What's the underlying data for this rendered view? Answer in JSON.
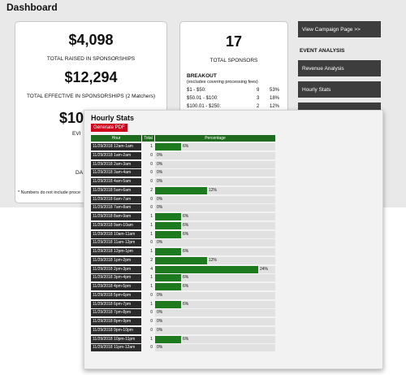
{
  "dashboard": {
    "title": "Dashboard",
    "raised": {
      "value": "$4,098",
      "label": "TOTAL RAISED IN SPONSORSHIPS"
    },
    "effective": {
      "value": "$12,294",
      "label": "TOTAL EFFECTIVE IN SPONSORSHIPS (2 Matchers)"
    },
    "partial_value": "$10",
    "partial_label_1": "EVI",
    "partial_label_2": "DA",
    "note": "* Numbers do not include proce",
    "sponsors": {
      "value": "17",
      "label": "TOTAL SPONSORS"
    },
    "breakout": {
      "title": "BREAKOUT",
      "subtitle": "(excludes covering processing fees)",
      "rows": [
        {
          "range": "$1 - $50:",
          "count": "9",
          "pct": "53%"
        },
        {
          "range": "$50.01 - $100:",
          "count": "3",
          "pct": "18%"
        },
        {
          "range": "$100.01 - $250:",
          "count": "2",
          "pct": "12%"
        }
      ]
    },
    "sidebar": {
      "campaign_button": "View Campaign Page >>",
      "analysis_heading": "EVENT ANALYSIS",
      "revenue_button": "Revenue Analysis",
      "hourly_button": "Hourly Stats"
    }
  },
  "modal": {
    "title": "Hourly Stats",
    "pdf_button": "Generate PDF",
    "headers": {
      "hour": "Hour",
      "total": "Total",
      "percentage": "Percentage"
    },
    "rows": [
      {
        "hour": "11/29/2018 12am-1am",
        "total": "1",
        "pct": 6,
        "pct_label": "6%"
      },
      {
        "hour": "11/29/2018 1am-2am",
        "total": "0",
        "pct": 0,
        "pct_label": "0%"
      },
      {
        "hour": "11/29/2018 2am-3am",
        "total": "0",
        "pct": 0,
        "pct_label": "0%"
      },
      {
        "hour": "11/29/2018 3am-4am",
        "total": "0",
        "pct": 0,
        "pct_label": "0%"
      },
      {
        "hour": "11/29/2018 4am-5am",
        "total": "0",
        "pct": 0,
        "pct_label": "0%"
      },
      {
        "hour": "11/29/2018 5am-6am",
        "total": "2",
        "pct": 12,
        "pct_label": "12%"
      },
      {
        "hour": "11/29/2018 6am-7am",
        "total": "0",
        "pct": 0,
        "pct_label": "0%"
      },
      {
        "hour": "11/29/2018 7am-8am",
        "total": "0",
        "pct": 0,
        "pct_label": "0%"
      },
      {
        "hour": "11/29/2018 8am-9am",
        "total": "1",
        "pct": 6,
        "pct_label": "6%"
      },
      {
        "hour": "11/29/2018 9am-10am",
        "total": "1",
        "pct": 6,
        "pct_label": "6%"
      },
      {
        "hour": "11/29/2018 10am-11am",
        "total": "1",
        "pct": 6,
        "pct_label": "6%"
      },
      {
        "hour": "11/29/2018 11am-12pm",
        "total": "0",
        "pct": 0,
        "pct_label": "0%"
      },
      {
        "hour": "11/29/2018 12pm-1pm",
        "total": "1",
        "pct": 6,
        "pct_label": "6%"
      },
      {
        "hour": "11/29/2018 1pm-2pm",
        "total": "2",
        "pct": 12,
        "pct_label": "12%"
      },
      {
        "hour": "11/29/2018 2pm-3pm",
        "total": "4",
        "pct": 24,
        "pct_label": "24%"
      },
      {
        "hour": "11/29/2018 3pm-4pm",
        "total": "1",
        "pct": 6,
        "pct_label": "6%"
      },
      {
        "hour": "11/29/2018 4pm-5pm",
        "total": "1",
        "pct": 6,
        "pct_label": "6%"
      },
      {
        "hour": "11/29/2018 5pm-6pm",
        "total": "0",
        "pct": 0,
        "pct_label": "0%"
      },
      {
        "hour": "11/29/2018 6pm-7pm",
        "total": "1",
        "pct": 6,
        "pct_label": "6%"
      },
      {
        "hour": "11/29/2018 7pm-8pm",
        "total": "0",
        "pct": 0,
        "pct_label": "0%"
      },
      {
        "hour": "11/29/2018 8pm-9pm",
        "total": "0",
        "pct": 0,
        "pct_label": "0%"
      },
      {
        "hour": "11/29/2018 9pm-10pm",
        "total": "0",
        "pct": 0,
        "pct_label": "0%"
      },
      {
        "hour": "11/29/2018 10pm-11pm",
        "total": "1",
        "pct": 6,
        "pct_label": "6%"
      },
      {
        "hour": "11/29/2018 11pm-12am",
        "total": "0",
        "pct": 0,
        "pct_label": "0%"
      }
    ],
    "max_pct": 24
  },
  "colors": {
    "bar": "#1e7a1e",
    "header": "#1e6b1e",
    "pdf": "#d0021b",
    "sidebar_button": "#3d3d3d"
  }
}
